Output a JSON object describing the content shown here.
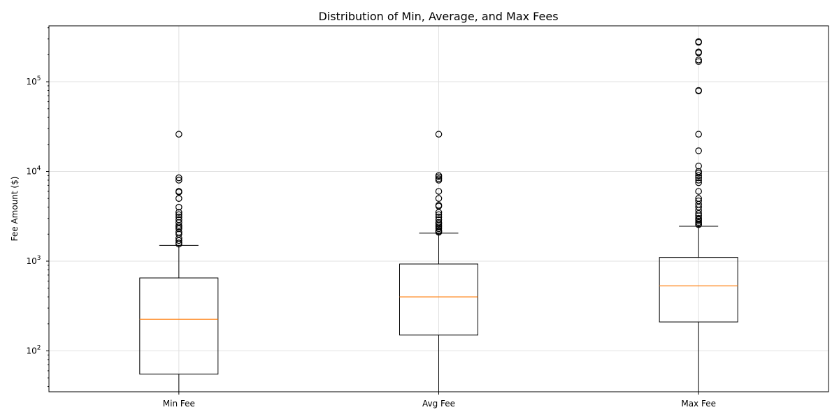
{
  "chart_data": {
    "type": "box",
    "title": "Distribution of Min, Average, and Max Fees",
    "xlabel": "",
    "ylabel": "Fee Amount ($)",
    "yscale": "log",
    "ylim": [
      35,
      420000
    ],
    "yticks": [
      {
        "value": 100,
        "base": "10",
        "exp": "2"
      },
      {
        "value": 1000,
        "base": "10",
        "exp": "3"
      },
      {
        "value": 10000,
        "base": "10",
        "exp": "4"
      },
      {
        "value": 100000,
        "base": "10",
        "exp": "5"
      }
    ],
    "grid": true,
    "colors": {
      "median": "#ff7f0e",
      "box": "#000000",
      "grid": "#e0e0e0"
    },
    "boxes": [
      {
        "category": "Min Fee",
        "whisker_low": 35,
        "q1": 55,
        "median": 225,
        "q3": 650,
        "whisker_high": 1500,
        "fliers": [
          26000,
          8500,
          8000,
          6000,
          5900,
          5000,
          4000,
          3500,
          3300,
          3100,
          2900,
          2700,
          2500,
          2400,
          2300,
          2100,
          2000,
          1800,
          1700,
          1600,
          1550
        ]
      },
      {
        "category": "Avg Fee",
        "whisker_low": 35,
        "q1": 150,
        "median": 400,
        "q3": 930,
        "whisker_high": 2050,
        "fliers": [
          26000,
          9000,
          8700,
          8300,
          8000,
          6000,
          5000,
          4200,
          4100,
          3500,
          3300,
          3100,
          2900,
          2700,
          2600,
          2500,
          2400,
          2300,
          2200,
          2150,
          2100
        ]
      },
      {
        "category": "Max Fee",
        "whisker_low": 35,
        "q1": 210,
        "median": 530,
        "q3": 1100,
        "whisker_high": 2450,
        "fliers": [
          280000,
          275000,
          215000,
          210000,
          175000,
          168000,
          80000,
          79000,
          26000,
          17000,
          11500,
          10000,
          9600,
          9000,
          8500,
          8000,
          7500,
          6000,
          5000,
          4700,
          4300,
          4000,
          3700,
          3400,
          3200,
          3000,
          2900,
          2800,
          2700,
          2600,
          2550
        ]
      }
    ]
  }
}
